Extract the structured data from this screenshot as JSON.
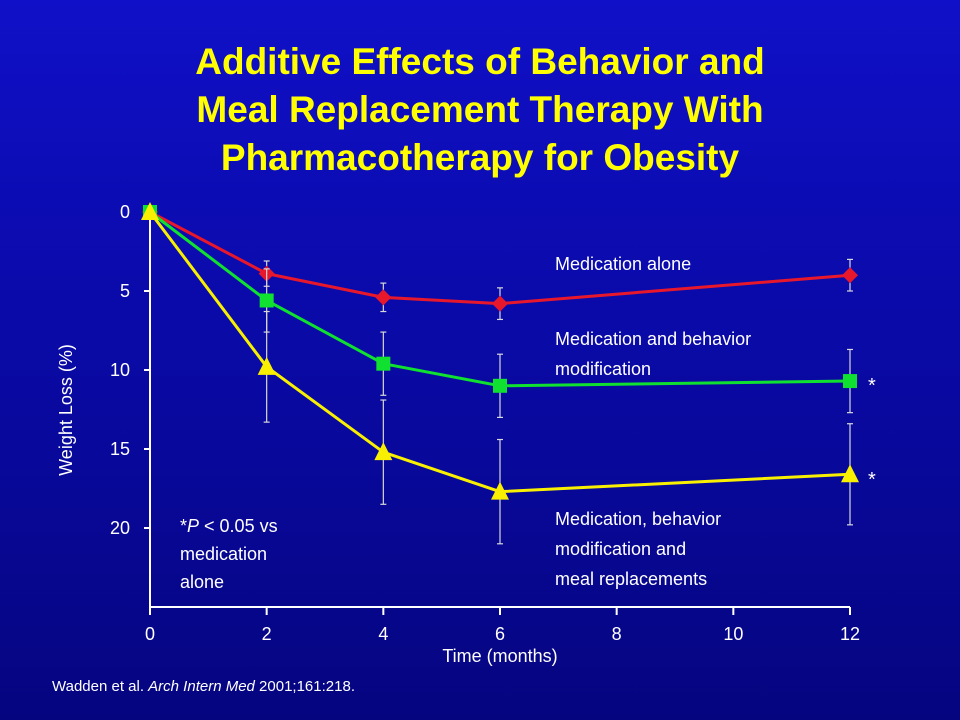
{
  "slide": {
    "title_lines": [
      "Additive Effects of Behavior and",
      "Meal Replacement Therapy With",
      "Pharmacotherapy for Obesity"
    ],
    "citation_authors": "Wadden et al. ",
    "citation_journal": "Arch Intern Med",
    "citation_ref": " 2001;161:218."
  },
  "colors": {
    "title": "#ffff00",
    "text": "#ffffff",
    "axis": "#ffffff",
    "medication_alone": "#e8182c",
    "medication_behavior": "#10e030",
    "medication_behavior_meal": "#f8f000"
  },
  "chart_data": {
    "type": "line",
    "xlabel": "Time (months)",
    "ylabel": "Weight Loss (%)",
    "x_ticks": [
      0,
      2,
      4,
      6,
      8,
      10,
      12
    ],
    "y_ticks": [
      0,
      5,
      10,
      15,
      20
    ],
    "xlim": [
      0,
      12
    ],
    "ylim": [
      0,
      25
    ],
    "y_inverted": true,
    "grid": false,
    "series": [
      {
        "name": "Medication alone",
        "color_key": "medication_alone",
        "marker": "diamond",
        "points": [
          {
            "x": 0,
            "y": 0,
            "err": 0
          },
          {
            "x": 2,
            "y": 3.9,
            "err": 0.8
          },
          {
            "x": 4,
            "y": 5.4,
            "err": 0.9
          },
          {
            "x": 6,
            "y": 5.8,
            "err": 1.0
          },
          {
            "x": 12,
            "y": 4.0,
            "err": 1.0
          }
        ]
      },
      {
        "name": "Medication and behavior modification",
        "color_key": "medication_behavior",
        "marker": "square",
        "points": [
          {
            "x": 0,
            "y": 0,
            "err": 0
          },
          {
            "x": 2,
            "y": 5.6,
            "err": 2.0
          },
          {
            "x": 4,
            "y": 9.6,
            "err": 2.0
          },
          {
            "x": 6,
            "y": 11.0,
            "err": 2.0
          },
          {
            "x": 12,
            "y": 10.7,
            "err": 2.0
          }
        ]
      },
      {
        "name": "Medication, behavior modification and meal replacements",
        "color_key": "medication_behavior_meal",
        "marker": "triangle",
        "points": [
          {
            "x": 0,
            "y": 0,
            "err": 0
          },
          {
            "x": 2,
            "y": 9.8,
            "err": 3.5
          },
          {
            "x": 4,
            "y": 15.2,
            "err": 3.3
          },
          {
            "x": 6,
            "y": 17.7,
            "err": 3.3
          },
          {
            "x": 12,
            "y": 16.6,
            "err": 3.2
          }
        ]
      }
    ],
    "labels": [
      {
        "key": "medication_alone",
        "lines": [
          "Medication alone"
        ]
      },
      {
        "key": "medication_behavior",
        "lines": [
          "Medication and behavior",
          "modification"
        ]
      },
      {
        "key": "medication_behavior_meal",
        "lines": [
          "Medication, behavior",
          "modification and",
          "meal replacements"
        ]
      }
    ],
    "significance_marker": "*",
    "significant_series": [
      "medication_behavior",
      "medication_behavior_meal"
    ],
    "footnote": {
      "prefix": "*",
      "p_symbol": "P",
      "condition": " < 0.05 vs",
      "line2": "medication",
      "line3": "alone"
    }
  }
}
